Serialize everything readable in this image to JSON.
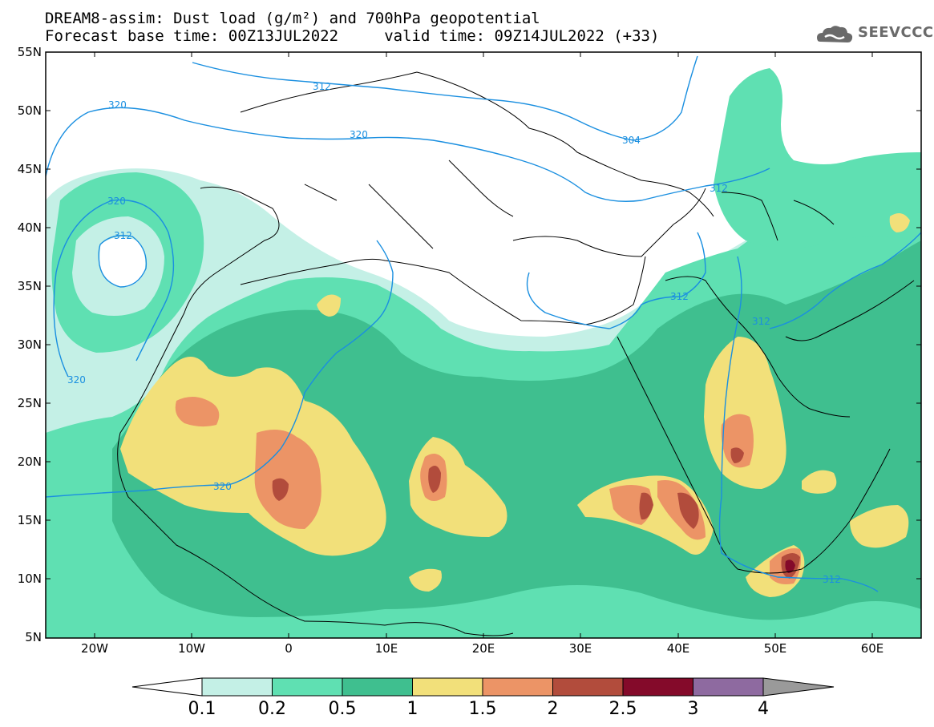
{
  "header": {
    "title_line1": "DREAM8-assim: Dust load (g/m²) and 700hPa geopotential",
    "title_line2": "Forecast base time: 00Z13JUL2022     valid time: 09Z14JUL2022 (+33)",
    "logo_text": "SEEVCCC",
    "logo_icon": "cloud-logo-icon"
  },
  "axes": {
    "lat_labels": [
      "55N",
      "50N",
      "45N",
      "40N",
      "35N",
      "30N",
      "25N",
      "20N",
      "15N",
      "10N",
      "5N"
    ],
    "lon_labels": [
      "20W",
      "10W",
      "0",
      "10E",
      "20E",
      "30E",
      "40E",
      "50E",
      "60E"
    ]
  },
  "contour_labels": [
    "312",
    "320",
    "320",
    "320",
    "312",
    "304",
    "312",
    "312",
    "312",
    "320",
    "312",
    "312",
    "312",
    "320"
  ],
  "colorbar": {
    "levels": [
      "0.1",
      "0.2",
      "0.5",
      "1",
      "1.5",
      "2",
      "2.5",
      "3",
      "4"
    ],
    "colors": [
      "#c4f0e6",
      "#5fe0b2",
      "#3fbf8f",
      "#f2e07a",
      "#ec9466",
      "#b24c3c",
      "#840a2a",
      "#8e6aa0"
    ],
    "min_arrow_color": "#ffffff",
    "max_arrow_color": "#9a9a9a"
  },
  "map_colors": {
    "geopotential_line": "#1a8fe0",
    "coastline": "#000000"
  }
}
